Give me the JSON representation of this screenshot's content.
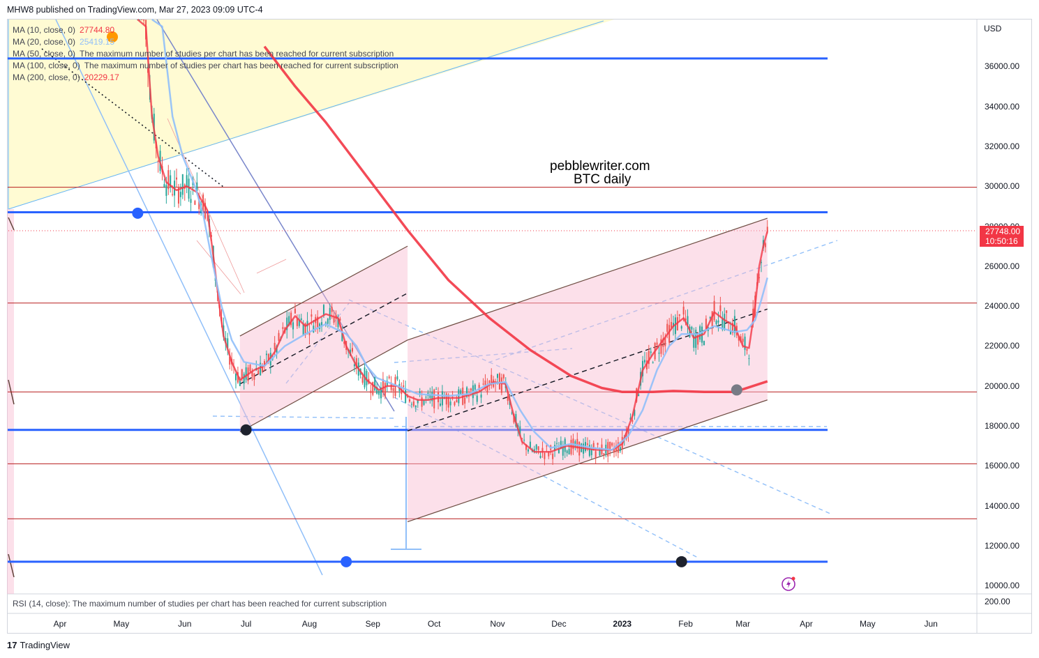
{
  "header": "MHW8 published on TradingView.com, Mar 27, 2023 09:09 UTC-4",
  "legend": [
    {
      "name": "MA (10, close, 0)",
      "value": "27744.80",
      "color": "#f23645"
    },
    {
      "name": "MA (20, close, 0)",
      "value": "25419.15",
      "color": "#90bff9"
    },
    {
      "name": "MA (50, close, 0)",
      "value": "The maximum number of studies per chart has been reached for current subscription",
      "color": "#434651"
    },
    {
      "name": "MA (100, close, 0)",
      "value": "The maximum number of studies per chart has been reached for current subscription",
      "color": "#434651"
    },
    {
      "name": "MA (200, close, 0)",
      "value": "20229.17",
      "color": "#f23645"
    }
  ],
  "rsi_label": "RSI (14, close): The maximum number of studies per chart has been reached for current subscription",
  "watermark": {
    "line1": "pebblewriter.com",
    "line2": "BTC daily"
  },
  "currency": "USD",
  "price_tag": {
    "price": "27748.00",
    "countdown": "10:50:16"
  },
  "rsi_tick": "200.00",
  "footer": {
    "logo_text": "TradingView"
  },
  "icons": {
    "logo": "tradingview-logo-icon",
    "alert": "lightning-icon"
  },
  "colors": {
    "blue_line": "#2962ff",
    "red_line": "#b71c1c",
    "channel_fill": "#f8bbd0",
    "ma_red": "#f23645",
    "ma_blue": "#90bff9",
    "candle_up": "#26a69a",
    "candle_down": "#ef5350"
  },
  "chart_data": {
    "type": "line",
    "symbol": "BTC",
    "timeframe": "daily",
    "y_axis": {
      "ticks": [
        "36000.00",
        "34000.00",
        "32000.00",
        "30000.00",
        "28000.00",
        "26000.00",
        "24000.00",
        "22000.00",
        "20000.00",
        "18000.00",
        "16000.00",
        "14000.00",
        "12000.00",
        "10000.00"
      ],
      "range": [
        9500,
        37800
      ]
    },
    "x_axis": {
      "ticks": [
        {
          "label": "Apr",
          "bold": false
        },
        {
          "label": "May",
          "bold": false
        },
        {
          "label": "Jun",
          "bold": false
        },
        {
          "label": "Jul",
          "bold": false
        },
        {
          "label": "Aug",
          "bold": false
        },
        {
          "label": "Sep",
          "bold": false
        },
        {
          "label": "Oct",
          "bold": false
        },
        {
          "label": "Nov",
          "bold": false
        },
        {
          "label": "Dec",
          "bold": false
        },
        {
          "label": "2023",
          "bold": true
        },
        {
          "label": "Feb",
          "bold": false
        },
        {
          "label": "Mar",
          "bold": false
        },
        {
          "label": "Apr",
          "bold": false
        },
        {
          "label": "May",
          "bold": false
        },
        {
          "label": "Jun",
          "bold": false
        }
      ],
      "day_offsets": [
        0,
        30,
        61,
        91,
        122,
        153,
        183,
        214,
        244,
        275,
        306,
        334,
        365,
        395,
        426
      ]
    },
    "horizontal_levels": [
      {
        "price": 36400,
        "kind": "support-resistance",
        "color": "#2962ff"
      },
      {
        "price": 28700,
        "kind": "support-resistance",
        "color": "#2962ff"
      },
      {
        "price": 17800,
        "kind": "support-resistance",
        "color": "#2962ff"
      },
      {
        "price": 11200,
        "kind": "support-resistance",
        "color": "#2962ff"
      },
      {
        "price": 29950,
        "kind": "thin",
        "color": "#b71c1c"
      },
      {
        "price": 24150,
        "kind": "thin",
        "color": "#b71c1c"
      },
      {
        "price": 19700,
        "kind": "thin",
        "color": "#b71c1c"
      },
      {
        "price": 16100,
        "kind": "thin",
        "color": "#b71c1c"
      },
      {
        "price": 13350,
        "kind": "thin",
        "color": "#b71c1c"
      }
    ],
    "last_price": 27748,
    "series": [
      {
        "name": "MA (10, close, 0)",
        "color": "#f23645",
        "points": [
          [
            38,
            42500
          ],
          [
            42,
            38000
          ],
          [
            45,
            33500
          ],
          [
            48,
            31500
          ],
          [
            52,
            30200
          ],
          [
            57,
            29800
          ],
          [
            62,
            30000
          ],
          [
            67,
            29700
          ],
          [
            72,
            28800
          ],
          [
            75,
            26500
          ],
          [
            78,
            24000
          ],
          [
            80,
            22500
          ],
          [
            84,
            21200
          ],
          [
            88,
            20300
          ],
          [
            95,
            20800
          ],
          [
            100,
            21000
          ],
          [
            105,
            21700
          ],
          [
            110,
            22800
          ],
          [
            115,
            23500
          ],
          [
            120,
            23000
          ],
          [
            125,
            23300
          ],
          [
            130,
            23600
          ],
          [
            136,
            23400
          ],
          [
            140,
            22000
          ],
          [
            145,
            21000
          ],
          [
            150,
            20300
          ],
          [
            156,
            19800
          ],
          [
            160,
            20000
          ],
          [
            165,
            20000
          ],
          [
            170,
            19500
          ],
          [
            175,
            19300
          ],
          [
            180,
            19300
          ],
          [
            185,
            19400
          ],
          [
            195,
            19400
          ],
          [
            205,
            19700
          ],
          [
            212,
            20200
          ],
          [
            218,
            20100
          ],
          [
            222,
            18500
          ],
          [
            226,
            17200
          ],
          [
            232,
            16700
          ],
          [
            240,
            16700
          ],
          [
            248,
            17000
          ],
          [
            255,
            16900
          ],
          [
            262,
            16800
          ],
          [
            270,
            16800
          ],
          [
            275,
            17100
          ],
          [
            280,
            18500
          ],
          [
            285,
            20800
          ],
          [
            290,
            21600
          ],
          [
            295,
            22300
          ],
          [
            300,
            23000
          ],
          [
            305,
            23400
          ],
          [
            310,
            22400
          ],
          [
            315,
            22600
          ],
          [
            320,
            23700
          ],
          [
            325,
            23300
          ],
          [
            330,
            23000
          ],
          [
            334,
            22000
          ],
          [
            337,
            21900
          ],
          [
            340,
            24000
          ],
          [
            342,
            26000
          ],
          [
            344,
            27000
          ],
          [
            346,
            27744
          ]
        ]
      },
      {
        "name": "MA (20, close, 0)",
        "color": "#90bff9",
        "points": [
          [
            45,
            46000
          ],
          [
            50,
            38000
          ],
          [
            55,
            33500
          ],
          [
            60,
            31500
          ],
          [
            66,
            30000
          ],
          [
            70,
            28600
          ],
          [
            74,
            26500
          ],
          [
            79,
            24000
          ],
          [
            84,
            22300
          ],
          [
            90,
            21200
          ],
          [
            100,
            21000
          ],
          [
            110,
            22000
          ],
          [
            120,
            22600
          ],
          [
            130,
            23100
          ],
          [
            140,
            22600
          ],
          [
            145,
            22000
          ],
          [
            150,
            21000
          ],
          [
            155,
            20400
          ],
          [
            165,
            20000
          ],
          [
            175,
            19600
          ],
          [
            190,
            19500
          ],
          [
            200,
            19600
          ],
          [
            210,
            20100
          ],
          [
            218,
            20200
          ],
          [
            225,
            18800
          ],
          [
            232,
            17700
          ],
          [
            240,
            16900
          ],
          [
            250,
            17100
          ],
          [
            260,
            16900
          ],
          [
            270,
            16800
          ],
          [
            278,
            17500
          ],
          [
            285,
            18800
          ],
          [
            292,
            20800
          ],
          [
            298,
            22000
          ],
          [
            304,
            22600
          ],
          [
            312,
            22600
          ],
          [
            320,
            23000
          ],
          [
            330,
            22700
          ],
          [
            336,
            22800
          ],
          [
            340,
            23300
          ],
          [
            343,
            24300
          ],
          [
            346,
            25419
          ]
        ]
      },
      {
        "name": "MA (200, close, 0)",
        "color": "#f23645",
        "points": [
          [
            100,
            37000
          ],
          [
            115,
            35000
          ],
          [
            130,
            33200
          ],
          [
            150,
            30500
          ],
          [
            170,
            27800
          ],
          [
            190,
            25300
          ],
          [
            210,
            23400
          ],
          [
            230,
            21800
          ],
          [
            250,
            20500
          ],
          [
            265,
            19900
          ],
          [
            275,
            19700
          ],
          [
            290,
            19700
          ],
          [
            300,
            19750
          ],
          [
            315,
            19700
          ],
          [
            330,
            19700
          ],
          [
            346,
            20229
          ]
        ]
      }
    ],
    "channels": [
      {
        "upper": [
          [
            88,
            22500
          ],
          [
            170,
            27000
          ]
        ],
        "lower": [
          [
            88,
            17700
          ],
          [
            170,
            22300
          ]
        ]
      },
      {
        "upper": [
          [
            170,
            22300
          ],
          [
            346,
            28400
          ]
        ],
        "lower": [
          [
            170,
            13200
          ],
          [
            346,
            19300
          ]
        ]
      }
    ],
    "markers": [
      {
        "day": 38,
        "price": 28650,
        "color": "#2962ff"
      },
      {
        "day": 91,
        "price": 17800,
        "color": "#1e222d"
      },
      {
        "day": 140,
        "price": 11200,
        "color": "#2962ff"
      },
      {
        "day": 304,
        "price": 11200,
        "color": "#1e222d"
      },
      {
        "day": 331,
        "price": 19800,
        "color": "#787b86"
      }
    ]
  }
}
